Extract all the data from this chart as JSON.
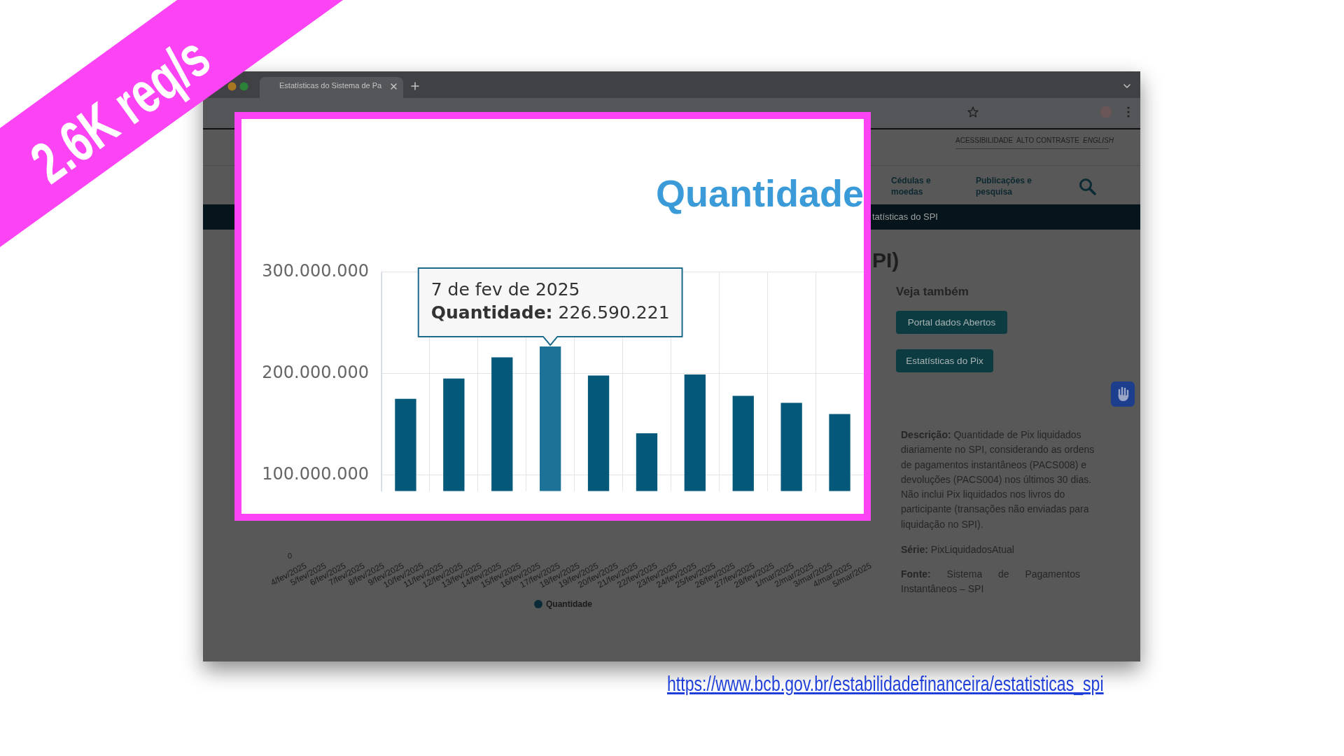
{
  "chart_data": [
    {
      "type": "bar",
      "title": "Quantidade",
      "categories": [
        null,
        null,
        null,
        null,
        null,
        null,
        null,
        null,
        null,
        null
      ],
      "values": [
        175000000,
        195000000,
        216000000,
        226590221,
        198000000,
        141000000,
        199000000,
        178000000,
        171000000,
        160000000
      ],
      "colors": [
        "#04597b",
        "#04597b",
        "#04597b",
        "#1c7397",
        "#04597b",
        "#04597b",
        "#04597b",
        "#04597b",
        "#04597b",
        "#04597b"
      ],
      "ylim": [
        84000000,
        300000000
      ],
      "yticks": [
        {
          "value": 100000000,
          "label": "100.000.000"
        },
        {
          "value": 200000000,
          "label": "200.000.000"
        },
        {
          "value": 300000000,
          "label": "300.000.000"
        }
      ],
      "grid": true,
      "tick_labels": "y",
      "annotations": [
        {
          "text": "7 de fev de 2025\nQuantidade: 226.590.221",
          "y": 226590221
        }
      ]
    },
    {
      "type": "other",
      "annotations": [
        "4/fev/2025",
        "5/fev/2025",
        "6/fev/2025",
        "7/fev/2025",
        "8/fev/2025",
        "9/fev/2025",
        "10/fev/2025",
        "11/fev/2025",
        "12/fev/2025",
        "13/fev/2025",
        "14/fev/2025",
        "15/fev/2025",
        "16/fev/2025",
        "17/fev/2025",
        "18/fev/2025",
        "19/fev/2025",
        "20/fev/2025",
        "21/fev/2025",
        "22/fev/2025",
        "23/fev/2025",
        "24/fev/2025",
        "25/fev/2025",
        "26/fev/2025",
        "27/fev/2025",
        "28/fev/2025",
        "1/mar/2025",
        "2/mar/2025",
        "3/mar/2025",
        "4/mar/2025",
        "5/mar/2025",
        "0",
        "Quantidade"
      ]
    },
    {
      "type": "other",
      "annotations": [
        "2.6K req/s",
        "https://www.bcb.gov.br/estabilidadefinanceira/estatisticas_spi",
        "Estatísticas do Sistema de Pa",
        "ACESSIBILIDADE",
        "ALTO CONTRASTE",
        "ENGLISH",
        "Cédulas e moedas",
        "Publicações e pesquisa",
        "tatísticas do SPI",
        "PI)",
        "Veja também",
        "Portal dados Abertos",
        "Estatísticas do Pix",
        "Descrição: Quantidade de Pix liquidados diariamente no SPI, considerando as ordens de pagamentos instantâneos (PACS008) e devoluções (PACS004) nos últimos 30 dias. Não inclui Pix liquidados nos livros do participante (transações não enviadas para liquidação no SPI).",
        "Série: PixLiquidadosAtual",
        "Fonte: Sistema de Pagamentos Instantâneos – SPI"
      ]
    }
  ]
}
